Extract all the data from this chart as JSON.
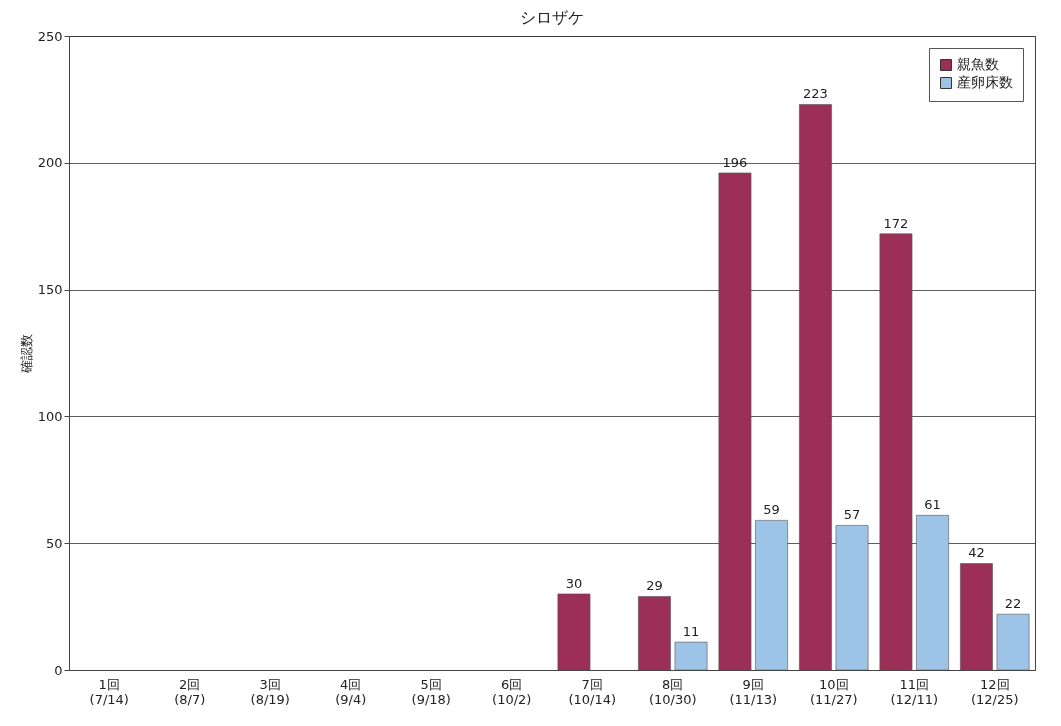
{
  "chart_data": {
    "type": "bar",
    "title": "シロザケ",
    "ylabel": "確認数",
    "categories": [
      "1回\n(7/14)",
      "2回\n(8/7)",
      "3回\n(8/19)",
      "4回\n(9/4)",
      "5回\n(9/18)",
      "6回\n(10/2)",
      "7回\n(10/14)",
      "8回\n(10/30)",
      "9回\n(11/13)",
      "10回\n(11/27)",
      "11回\n(12/11)",
      "12回\n(12/25)"
    ],
    "series": [
      {
        "name": "親魚数",
        "color": "#9b2f55",
        "values": [
          null,
          null,
          null,
          null,
          null,
          null,
          30,
          29,
          196,
          223,
          172,
          42
        ]
      },
      {
        "name": "産卵床数",
        "color": "#9dc3e6",
        "values": [
          null,
          null,
          null,
          null,
          null,
          null,
          null,
          11,
          59,
          57,
          61,
          22
        ]
      }
    ],
    "ylim": [
      0,
      250
    ],
    "yticks": [
      0,
      50,
      100,
      150,
      200,
      250
    ],
    "grid": "y",
    "legend": "top right",
    "data_labels": true
  }
}
